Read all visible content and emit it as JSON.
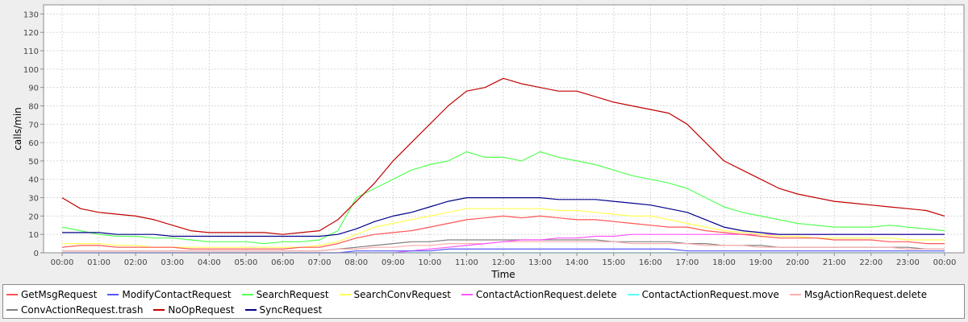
{
  "chart_data": {
    "type": "line",
    "title": "",
    "xlabel": "Time",
    "ylabel": "calls/min",
    "ylim": [
      0,
      135
    ],
    "xlim": [
      0,
      24
    ],
    "y_ticks": [
      0,
      10,
      20,
      30,
      40,
      50,
      60,
      70,
      80,
      90,
      100,
      110,
      120,
      130
    ],
    "x_tick_labels": [
      "00:00",
      "01:00",
      "02:00",
      "03:00",
      "04:00",
      "05:00",
      "06:00",
      "07:00",
      "08:00",
      "09:00",
      "10:00",
      "11:00",
      "12:00",
      "13:00",
      "14:00",
      "15:00",
      "16:00",
      "17:00",
      "18:00",
      "19:00",
      "20:00",
      "21:00",
      "22:00",
      "23:00",
      "00:00"
    ],
    "grid": true,
    "legend_position": "bottom",
    "x_hours": [
      0,
      0.5,
      1,
      1.5,
      2,
      2.5,
      3,
      3.5,
      4,
      4.5,
      5,
      5.5,
      6,
      6.5,
      7,
      7.5,
      8,
      8.5,
      9,
      9.5,
      10,
      10.5,
      11,
      11.5,
      12,
      12.5,
      13,
      13.5,
      14,
      14.5,
      15,
      15.5,
      16,
      16.5,
      17,
      17.5,
      18,
      18.5,
      19,
      19.5,
      20,
      20.5,
      21,
      21.5,
      22,
      22.5,
      23,
      23.5,
      24
    ],
    "series": [
      {
        "name": "GetMsgRequest",
        "color": "#ff5555",
        "values": [
          3,
          4,
          4,
          3,
          3,
          3,
          3,
          2,
          2,
          2,
          2,
          2,
          2,
          3,
          3,
          5,
          8,
          10,
          11,
          12,
          14,
          16,
          18,
          19,
          20,
          19,
          20,
          19,
          18,
          18,
          17,
          16,
          15,
          14,
          14,
          12,
          11,
          10,
          9,
          8,
          8,
          8,
          7,
          7,
          7,
          6,
          6,
          5,
          5
        ]
      },
      {
        "name": "ModifyContactRequest",
        "color": "#5555ff",
        "values": [
          0,
          0,
          0,
          0,
          0,
          0,
          0,
          0,
          0,
          0,
          0,
          0,
          0,
          0,
          0,
          0,
          1,
          1,
          1,
          1,
          1,
          2,
          2,
          2,
          2,
          2,
          2,
          2,
          2,
          2,
          2,
          2,
          2,
          2,
          1,
          1,
          1,
          1,
          1,
          1,
          1,
          1,
          1,
          1,
          1,
          1,
          1,
          1,
          1
        ]
      },
      {
        "name": "SearchRequest",
        "color": "#55ff55",
        "values": [
          14,
          12,
          10,
          9,
          9,
          8,
          8,
          7,
          6,
          6,
          6,
          5,
          6,
          6,
          7,
          12,
          30,
          35,
          40,
          45,
          48,
          50,
          55,
          52,
          52,
          50,
          55,
          52,
          50,
          48,
          45,
          42,
          40,
          38,
          35,
          30,
          25,
          22,
          20,
          18,
          16,
          15,
          14,
          14,
          14,
          15,
          14,
          13,
          12
        ]
      },
      {
        "name": "SearchConvRequest",
        "color": "#ffff55",
        "values": [
          5,
          5,
          5,
          4,
          4,
          3,
          3,
          3,
          3,
          3,
          3,
          3,
          3,
          3,
          4,
          6,
          10,
          14,
          16,
          18,
          20,
          22,
          24,
          24,
          24,
          24,
          24,
          23,
          23,
          22,
          21,
          20,
          20,
          18,
          16,
          14,
          12,
          11,
          10,
          9,
          9,
          8,
          8,
          8,
          8,
          8,
          7,
          7,
          7
        ]
      },
      {
        "name": "ContactActionRequest.delete",
        "color": "#ff55ff",
        "values": [
          0,
          0,
          0,
          0,
          0,
          0,
          0,
          0,
          0,
          0,
          0,
          0,
          0,
          0,
          0,
          0,
          0,
          0,
          0,
          1,
          2,
          3,
          4,
          5,
          6,
          7,
          7,
          8,
          8,
          9,
          9,
          10,
          10,
          10,
          10,
          10,
          10,
          10,
          10,
          10,
          10,
          10,
          10,
          10,
          10,
          10,
          10,
          10,
          10
        ]
      },
      {
        "name": "ContactActionRequest.move",
        "color": "#55ffff",
        "values": [
          0,
          0,
          0,
          0,
          0,
          0,
          0,
          0,
          0,
          0,
          0,
          0,
          0,
          0,
          0,
          0,
          0,
          0,
          0,
          0,
          0,
          0,
          0,
          0,
          0,
          0,
          0,
          0,
          0,
          0,
          0,
          0,
          0,
          0,
          0,
          0,
          0,
          0,
          0,
          0,
          0,
          0,
          0,
          0,
          0,
          0,
          0,
          0,
          0
        ]
      },
      {
        "name": "MsgActionRequest.delete",
        "color": "#ffafaf",
        "values": [
          1,
          1,
          1,
          1,
          1,
          1,
          1,
          1,
          1,
          1,
          1,
          1,
          1,
          1,
          1,
          2,
          2,
          3,
          3,
          4,
          4,
          5,
          5,
          5,
          6,
          6,
          6,
          6,
          6,
          6,
          6,
          5,
          5,
          5,
          5,
          4,
          4,
          4,
          3,
          3,
          3,
          3,
          3,
          3,
          3,
          3,
          2,
          2,
          2
        ]
      },
      {
        "name": "ConvActionRequest.trash",
        "color": "#808080",
        "values": [
          1,
          1,
          1,
          1,
          1,
          1,
          1,
          1,
          1,
          1,
          1,
          1,
          1,
          1,
          1,
          2,
          3,
          4,
          5,
          6,
          6,
          7,
          7,
          7,
          7,
          7,
          7,
          7,
          7,
          7,
          6,
          6,
          6,
          6,
          5,
          5,
          4,
          4,
          4,
          3,
          3,
          3,
          3,
          3,
          3,
          3,
          3,
          2,
          2
        ]
      },
      {
        "name": "NoOpRequest",
        "color": "#c00000",
        "values": [
          30,
          24,
          22,
          21,
          20,
          18,
          15,
          12,
          11,
          11,
          11,
          11,
          10,
          11,
          12,
          18,
          28,
          38,
          50,
          60,
          70,
          80,
          88,
          90,
          95,
          92,
          90,
          88,
          88,
          85,
          82,
          80,
          78,
          76,
          70,
          60,
          50,
          45,
          40,
          35,
          32,
          30,
          28,
          27,
          26,
          25,
          24,
          23,
          20
        ]
      },
      {
        "name": "SyncRequest",
        "color": "#00008b",
        "values": [
          11,
          11,
          11,
          10,
          10,
          10,
          9,
          9,
          9,
          9,
          9,
          9,
          9,
          9,
          9,
          10,
          13,
          17,
          20,
          22,
          25,
          28,
          30,
          30,
          30,
          30,
          30,
          29,
          29,
          29,
          28,
          27,
          26,
          24,
          22,
          18,
          14,
          12,
          11,
          10,
          10,
          10,
          10,
          10,
          10,
          10,
          10,
          10,
          10
        ]
      }
    ]
  }
}
